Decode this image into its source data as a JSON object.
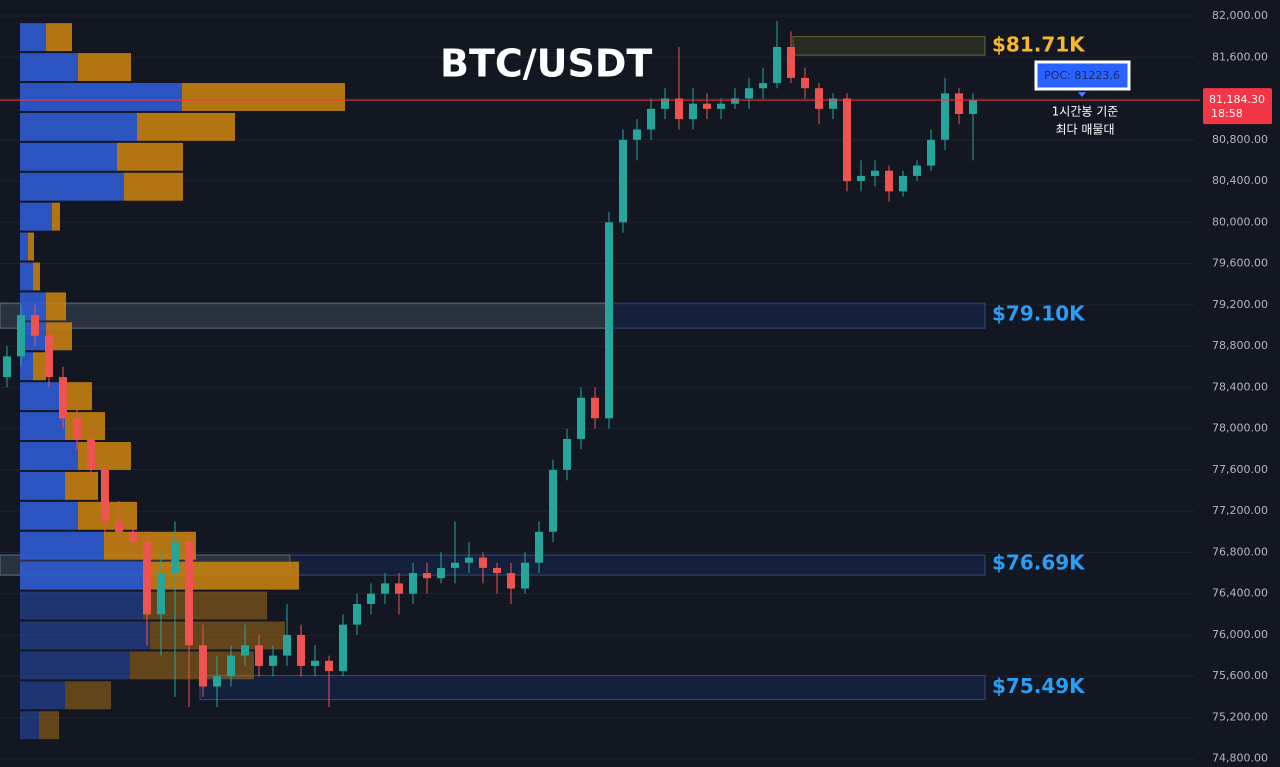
{
  "chart_data": {
    "type": "candlestick",
    "title": "BTC/USDT",
    "ylim": [
      74720,
      82155
    ],
    "yticks": [
      {
        "value": 82000,
        "label": "82,000.00"
      },
      {
        "value": 81600,
        "label": "81,600.00"
      },
      {
        "value": 81200,
        "label": "81,200.00"
      },
      {
        "value": 80800,
        "label": "80,800.00"
      },
      {
        "value": 80400,
        "label": "80,400.00"
      },
      {
        "value": 80000,
        "label": "80,000.00"
      },
      {
        "value": 79600,
        "label": "79,600.00"
      },
      {
        "value": 79200,
        "label": "79,200.00"
      },
      {
        "value": 78800,
        "label": "78,800.00"
      },
      {
        "value": 78400,
        "label": "78,400.00"
      },
      {
        "value": 78000,
        "label": "78,000.00"
      },
      {
        "value": 77600,
        "label": "77,600.00"
      },
      {
        "value": 77200,
        "label": "77,200.00"
      },
      {
        "value": 76800,
        "label": "76,800.00"
      },
      {
        "value": 76400,
        "label": "76,400.00"
      },
      {
        "value": 76000,
        "label": "76,000.00"
      },
      {
        "value": 75600,
        "label": "75,600.00"
      },
      {
        "value": 75200,
        "label": "75,200.00"
      },
      {
        "value": 74800,
        "label": "74,800.00"
      }
    ],
    "grid": true,
    "up_color": "#26a69a",
    "down_color": "#ef5350",
    "open": [
      78500,
      78700,
      79100,
      78900,
      78500,
      78100,
      77900,
      77600,
      77100,
      77000,
      76900,
      76200,
      76600,
      76900,
      75900,
      75500,
      75600,
      75800,
      75900,
      75700,
      75800,
      76000,
      75700,
      75750,
      75650,
      76100,
      76300,
      76400,
      76500,
      76400,
      76600,
      76550,
      76650,
      76700,
      76750,
      76650,
      76600,
      76450,
      76700,
      77000,
      77600,
      77900,
      78300,
      78100,
      80000,
      80800,
      80900,
      81100,
      81200,
      81000,
      81150,
      81100,
      81150,
      81200,
      81300,
      81350,
      81700,
      81400,
      81300,
      81100,
      81200,
      80400,
      80450,
      80500,
      80300,
      80450,
      80550,
      80800,
      81250,
      81050
    ],
    "high": [
      78800,
      79200,
      79200,
      79000,
      78600,
      78200,
      78000,
      77700,
      77300,
      77100,
      77000,
      76800,
      77100,
      77000,
      76100,
      75800,
      75900,
      76100,
      76000,
      75900,
      76300,
      76100,
      75900,
      75800,
      76200,
      76400,
      76500,
      76600,
      76600,
      76700,
      76700,
      76800,
      77100,
      76900,
      76800,
      76700,
      76700,
      76800,
      77100,
      77700,
      78000,
      78400,
      78400,
      80100,
      80900,
      81000,
      81200,
      81300,
      81700,
      81300,
      81250,
      81200,
      81300,
      81400,
      81500,
      81950,
      81850,
      81500,
      81350,
      81250,
      81250,
      80600,
      80600,
      80550,
      80500,
      80600,
      80900,
      81400,
      81300,
      81250
    ],
    "low": [
      78400,
      78600,
      78800,
      78400,
      78000,
      77800,
      77500,
      77000,
      76900,
      76800,
      75900,
      75800,
      75400,
      75300,
      75400,
      75300,
      75500,
      75700,
      75600,
      75600,
      75700,
      75600,
      75600,
      75300,
      75600,
      76000,
      76200,
      76300,
      76200,
      76300,
      76400,
      76500,
      76500,
      76600,
      76500,
      76400,
      76300,
      76400,
      76600,
      76900,
      77500,
      77800,
      78000,
      78000,
      79900,
      80600,
      80800,
      81000,
      80900,
      80900,
      81000,
      81000,
      81100,
      81100,
      81200,
      81300,
      81350,
      81200,
      80950,
      81000,
      80300,
      80300,
      80350,
      80200,
      80250,
      80400,
      80500,
      80700,
      80950,
      80600
    ],
    "close": [
      78700,
      79100,
      78900,
      78500,
      78100,
      77900,
      77600,
      77100,
      77000,
      76900,
      76200,
      76600,
      76900,
      75900,
      75500,
      75600,
      75800,
      75900,
      75700,
      75800,
      76000,
      75700,
      75750,
      75650,
      76100,
      76300,
      76400,
      76500,
      76400,
      76600,
      76550,
      76650,
      76700,
      76750,
      76650,
      76600,
      76450,
      76700,
      77000,
      77600,
      77900,
      78300,
      78100,
      80000,
      80800,
      80900,
      81100,
      81200,
      81000,
      81150,
      81100,
      81150,
      81200,
      81300,
      81350,
      81700,
      81400,
      81300,
      81100,
      81200,
      80400,
      80450,
      80500,
      80300,
      80450,
      80550,
      80800,
      81250,
      81050,
      81184.3
    ],
    "last_price": {
      "value": 81184.3,
      "label": "81,184.30",
      "color": "#f23645"
    },
    "countdown": "18:58",
    "profile": {
      "bins": [
        81940,
        81650,
        81360,
        81070,
        80780,
        80490,
        80200,
        79910,
        79620,
        79330,
        79040,
        78750,
        78460,
        78170,
        77880,
        77590,
        77300,
        77010,
        76720,
        76430,
        76140,
        75850,
        75560,
        75270,
        74980
      ],
      "buy": [
        26,
        58,
        162,
        117,
        97,
        104,
        32,
        8,
        13,
        26,
        26,
        13,
        39,
        45,
        58,
        45,
        58,
        84,
        130,
        123,
        130,
        110,
        45,
        19
      ],
      "sell": [
        26,
        53,
        163,
        98,
        66,
        59,
        8,
        6,
        7,
        20,
        26,
        13,
        33,
        40,
        53,
        33,
        59,
        92,
        149,
        124,
        135,
        124,
        46,
        20
      ],
      "buy_color": "#2f5bd3",
      "sell_color": "#c47f11"
    },
    "zones": [
      {
        "label": "$81.71K",
        "value": 81710,
        "range": [
          81620,
          81800
        ],
        "color": "#f5b72b"
      },
      {
        "label": "$79.10K",
        "value": 79100,
        "range": [
          78974,
          79217
        ],
        "color": "#2a9df4"
      },
      {
        "label": "$76.69K",
        "value": 76690,
        "range": [
          76580,
          76775
        ],
        "color": "#2a9df4"
      },
      {
        "label": "$75.49K",
        "value": 75490,
        "range": [
          75373,
          75608
        ],
        "color": "#2a9df4"
      }
    ],
    "poc": {
      "value": 81223.6,
      "label": "POC: 81223.6"
    },
    "note": [
      "1시간봉 기준",
      "최다 매물대"
    ]
  }
}
